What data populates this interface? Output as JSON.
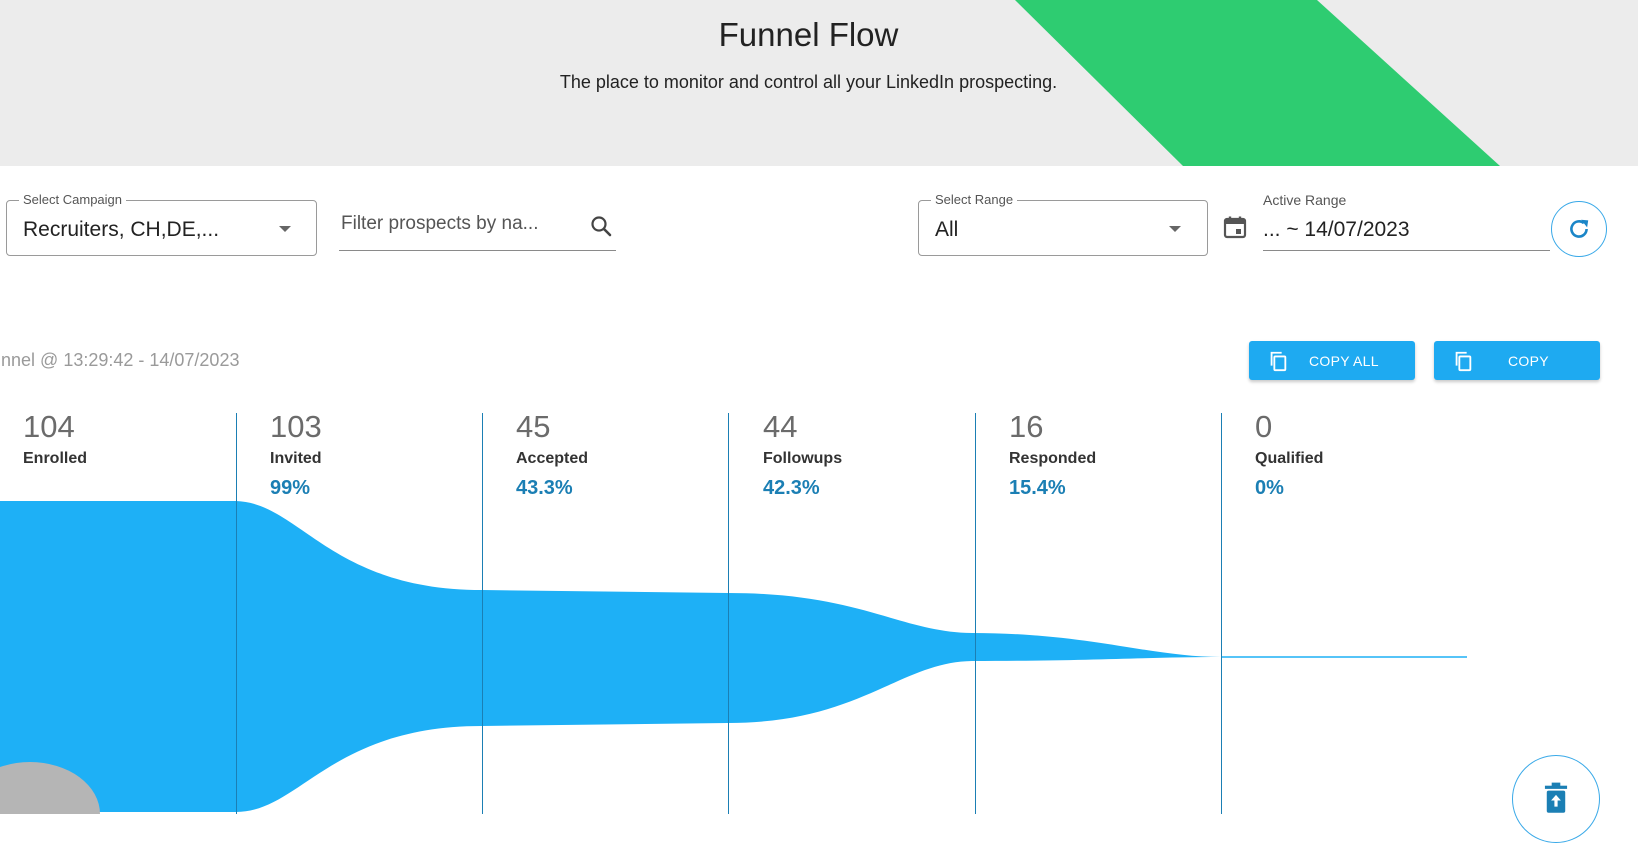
{
  "header": {
    "title": "Funnel Flow",
    "subtitle": "The place to monitor and control all your LinkedIn prospecting.",
    "accent_color": "#2ecc71"
  },
  "filters": {
    "campaign": {
      "label": "Select Campaign",
      "value": "Recruiters, CH,DE,..."
    },
    "search": {
      "placeholder": "Filter prospects by na..."
    },
    "range": {
      "label": "Select Range",
      "value": "All"
    },
    "active_range": {
      "label": "Active Range",
      "value": "... ~ 14/07/2023"
    }
  },
  "icons": {
    "search": "search-icon",
    "calendar": "calendar-icon",
    "refresh": "refresh-icon",
    "copy": "copy-icon",
    "delete": "delete-icon"
  },
  "funnel": {
    "snapshot": "unnel @ 13:29:42 - 14/07/2023",
    "copy_all_label": "COPY ALL",
    "copy_label": "COPY",
    "color": "#1eb0f6",
    "stages": [
      {
        "count": "104",
        "name": "Enrolled",
        "pct": ""
      },
      {
        "count": "103",
        "name": "Invited",
        "pct": "99%"
      },
      {
        "count": "45",
        "name": "Accepted",
        "pct": "43.3%"
      },
      {
        "count": "44",
        "name": "Followups",
        "pct": "42.3%"
      },
      {
        "count": "16",
        "name": "Responded",
        "pct": "15.4%"
      },
      {
        "count": "0",
        "name": "Qualified",
        "pct": "0%"
      }
    ]
  }
}
